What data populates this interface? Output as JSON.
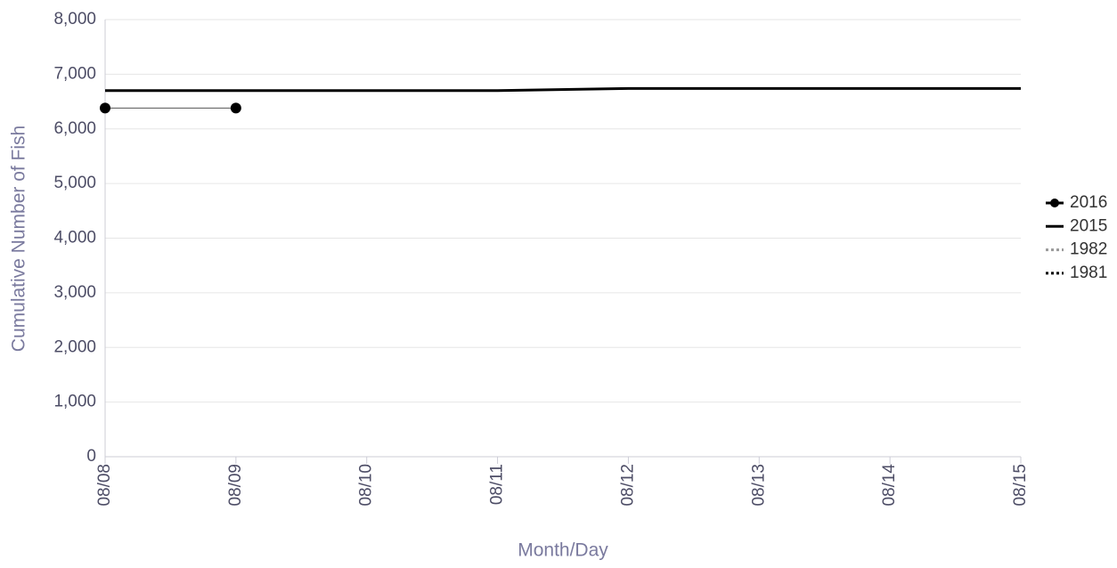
{
  "chart_data": {
    "type": "line",
    "x_label": "Month/Day",
    "y_label": "Cumulative Number of Fish",
    "categories": [
      "08/08",
      "08/09",
      "08/10",
      "08/11",
      "08/12",
      "08/13",
      "08/14",
      "08/15"
    ],
    "series": [
      {
        "name": "2016",
        "color": "#000000",
        "line_color": "#555555",
        "line_width": 1,
        "dash": "solid",
        "marker": true,
        "values": [
          6380,
          6380,
          null,
          null,
          null,
          null,
          null,
          null
        ]
      },
      {
        "name": "2015",
        "color": "#000000",
        "line_width": 3,
        "dash": "solid",
        "marker": false,
        "values": [
          6700,
          6700,
          6700,
          6700,
          6740,
          6740,
          6740,
          6740
        ]
      },
      {
        "name": "1982",
        "color": "#999999",
        "line_width": 3,
        "dash": "dot",
        "marker": false,
        "values": [
          null,
          null,
          null,
          null,
          null,
          null,
          null,
          null
        ]
      },
      {
        "name": "1981",
        "color": "#000000",
        "line_width": 3,
        "dash": "dot",
        "marker": false,
        "values": [
          null,
          null,
          null,
          null,
          null,
          null,
          null,
          null
        ]
      }
    ],
    "ylim": [
      0,
      8000
    ],
    "yticks": [
      0,
      {
        "value": 1000,
        "label": "1,000"
      },
      {
        "value": 2000,
        "label": "2,000"
      },
      {
        "value": 3000,
        "label": "3,000"
      },
      {
        "value": 4000,
        "label": "4,000"
      },
      {
        "value": 5000,
        "label": "5,000"
      },
      {
        "value": 6000,
        "label": "6,000"
      },
      {
        "value": 7000,
        "label": "7,000"
      },
      {
        "value": 8000,
        "label": "8,000"
      }
    ],
    "grid": true,
    "legend": "right"
  }
}
